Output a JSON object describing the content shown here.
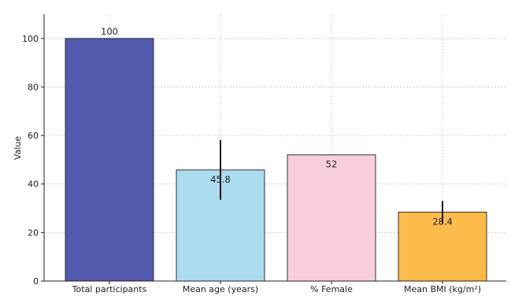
{
  "chart_data": {
    "type": "bar",
    "title": "",
    "xlabel": "",
    "ylabel": "Value",
    "ylim": [
      0,
      110
    ],
    "yticks": [
      0,
      20,
      40,
      60,
      80,
      100
    ],
    "grid": true,
    "categories": [
      "Total participants",
      "Mean age (years)",
      "% Female",
      "Mean BMI (kg/m²)"
    ],
    "values": [
      100,
      45.8,
      52,
      28.4
    ],
    "errors": [
      null,
      12.3,
      null,
      4.6
    ],
    "data_labels": [
      "100",
      "45.8",
      "52",
      "28.4"
    ],
    "colors": [
      "#5059ab",
      "#abdcf0",
      "#f8cddc",
      "#fdbb4b"
    ]
  }
}
